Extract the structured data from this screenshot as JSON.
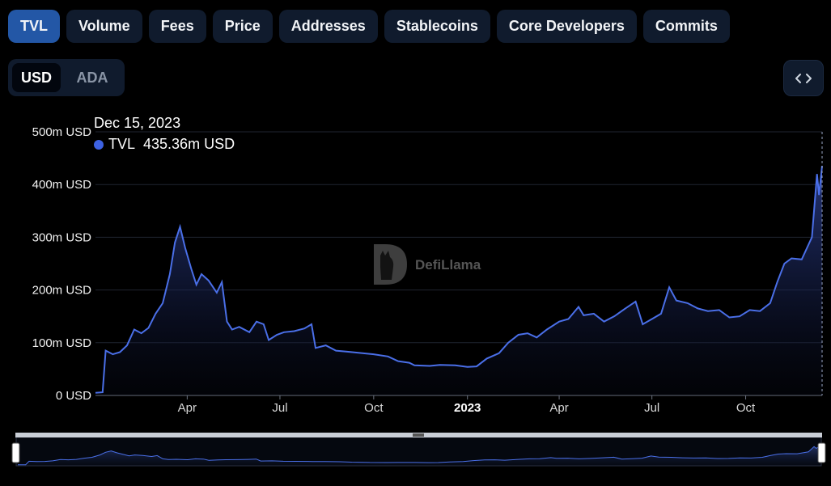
{
  "tabs": [
    {
      "label": "TVL",
      "active": true
    },
    {
      "label": "Volume",
      "active": false
    },
    {
      "label": "Fees",
      "active": false
    },
    {
      "label": "Price",
      "active": false
    },
    {
      "label": "Addresses",
      "active": false
    },
    {
      "label": "Stablecoins",
      "active": false
    },
    {
      "label": "Core Developers",
      "active": false
    },
    {
      "label": "Commits",
      "active": false
    }
  ],
  "currency": {
    "selected": "USD",
    "options": [
      "USD",
      "ADA"
    ]
  },
  "embed_icon": "code-brackets-icon",
  "tooltip": {
    "date": "Dec 15, 2023",
    "series": "TVL",
    "value": "435.36m USD",
    "color": "#3d62e3"
  },
  "watermark": {
    "text": "DefiLlama",
    "icon": "llama-logo-icon"
  },
  "colors": {
    "accent": "#2357a6",
    "line": "#4a6fe8",
    "panel": "#101b2d"
  },
  "chart_data": {
    "type": "area",
    "series": [
      {
        "name": "TVL",
        "color": "#4a6fe8"
      }
    ],
    "x_unit": "date",
    "y_unit": "USD",
    "ylim": [
      0,
      500000000
    ],
    "y_ticks": [
      "0 USD",
      "100m USD",
      "200m USD",
      "300m USD",
      "400m USD",
      "500m USD"
    ],
    "x_ticks": [
      {
        "label": "Apr",
        "date": "2022-04-01",
        "bold": false
      },
      {
        "label": "Jul",
        "date": "2022-07-01",
        "bold": false
      },
      {
        "label": "Oct",
        "date": "2022-10-01",
        "bold": false
      },
      {
        "label": "2023",
        "date": "2023-01-01",
        "bold": true
      },
      {
        "label": "Apr",
        "date": "2023-04-01",
        "bold": false
      },
      {
        "label": "Jul",
        "date": "2023-07-01",
        "bold": false
      },
      {
        "label": "Oct",
        "date": "2023-10-01",
        "bold": false
      }
    ],
    "points": [
      [
        "2022-01-01",
        5000000
      ],
      [
        "2022-01-08",
        6000000
      ],
      [
        "2022-01-11",
        85000000
      ],
      [
        "2022-01-18",
        78000000
      ],
      [
        "2022-01-25",
        82000000
      ],
      [
        "2022-02-01",
        95000000
      ],
      [
        "2022-02-08",
        125000000
      ],
      [
        "2022-02-15",
        118000000
      ],
      [
        "2022-02-22",
        128000000
      ],
      [
        "2022-03-01",
        155000000
      ],
      [
        "2022-03-08",
        175000000
      ],
      [
        "2022-03-15",
        230000000
      ],
      [
        "2022-03-20",
        290000000
      ],
      [
        "2022-03-25",
        320000000
      ],
      [
        "2022-03-30",
        280000000
      ],
      [
        "2022-04-05",
        240000000
      ],
      [
        "2022-04-10",
        210000000
      ],
      [
        "2022-04-15",
        230000000
      ],
      [
        "2022-04-22",
        218000000
      ],
      [
        "2022-04-30",
        195000000
      ],
      [
        "2022-05-05",
        215000000
      ],
      [
        "2022-05-10",
        140000000
      ],
      [
        "2022-05-15",
        125000000
      ],
      [
        "2022-05-22",
        130000000
      ],
      [
        "2022-06-01",
        120000000
      ],
      [
        "2022-06-08",
        140000000
      ],
      [
        "2022-06-15",
        135000000
      ],
      [
        "2022-06-20",
        105000000
      ],
      [
        "2022-06-28",
        115000000
      ],
      [
        "2022-07-05",
        120000000
      ],
      [
        "2022-07-15",
        122000000
      ],
      [
        "2022-07-25",
        127000000
      ],
      [
        "2022-08-01",
        135000000
      ],
      [
        "2022-08-05",
        90000000
      ],
      [
        "2022-08-15",
        95000000
      ],
      [
        "2022-08-25",
        85000000
      ],
      [
        "2022-09-05",
        83000000
      ],
      [
        "2022-09-20",
        80000000
      ],
      [
        "2022-10-01",
        78000000
      ],
      [
        "2022-10-15",
        74000000
      ],
      [
        "2022-10-25",
        65000000
      ],
      [
        "2022-11-05",
        62000000
      ],
      [
        "2022-11-10",
        57000000
      ],
      [
        "2022-11-25",
        56000000
      ],
      [
        "2022-12-05",
        58000000
      ],
      [
        "2022-12-20",
        57000000
      ],
      [
        "2023-01-01",
        54000000
      ],
      [
        "2023-01-10",
        55000000
      ],
      [
        "2023-01-20",
        70000000
      ],
      [
        "2023-02-01",
        80000000
      ],
      [
        "2023-02-10",
        100000000
      ],
      [
        "2023-02-20",
        115000000
      ],
      [
        "2023-03-01",
        118000000
      ],
      [
        "2023-03-10",
        110000000
      ],
      [
        "2023-03-20",
        125000000
      ],
      [
        "2023-04-01",
        140000000
      ],
      [
        "2023-04-10",
        145000000
      ],
      [
        "2023-04-20",
        168000000
      ],
      [
        "2023-04-25",
        152000000
      ],
      [
        "2023-05-05",
        155000000
      ],
      [
        "2023-05-15",
        140000000
      ],
      [
        "2023-05-25",
        150000000
      ],
      [
        "2023-06-05",
        165000000
      ],
      [
        "2023-06-15",
        178000000
      ],
      [
        "2023-06-22",
        135000000
      ],
      [
        "2023-07-01",
        145000000
      ],
      [
        "2023-07-10",
        155000000
      ],
      [
        "2023-07-18",
        205000000
      ],
      [
        "2023-07-25",
        180000000
      ],
      [
        "2023-08-05",
        175000000
      ],
      [
        "2023-08-15",
        165000000
      ],
      [
        "2023-08-25",
        160000000
      ],
      [
        "2023-09-05",
        162000000
      ],
      [
        "2023-09-15",
        148000000
      ],
      [
        "2023-09-25",
        150000000
      ],
      [
        "2023-10-05",
        162000000
      ],
      [
        "2023-10-15",
        160000000
      ],
      [
        "2023-10-25",
        175000000
      ],
      [
        "2023-11-01",
        215000000
      ],
      [
        "2023-11-08",
        250000000
      ],
      [
        "2023-11-15",
        260000000
      ],
      [
        "2023-11-25",
        258000000
      ],
      [
        "2023-12-05",
        300000000
      ],
      [
        "2023-12-10",
        420000000
      ],
      [
        "2023-12-12",
        380000000
      ],
      [
        "2023-12-15",
        435360000
      ]
    ]
  }
}
